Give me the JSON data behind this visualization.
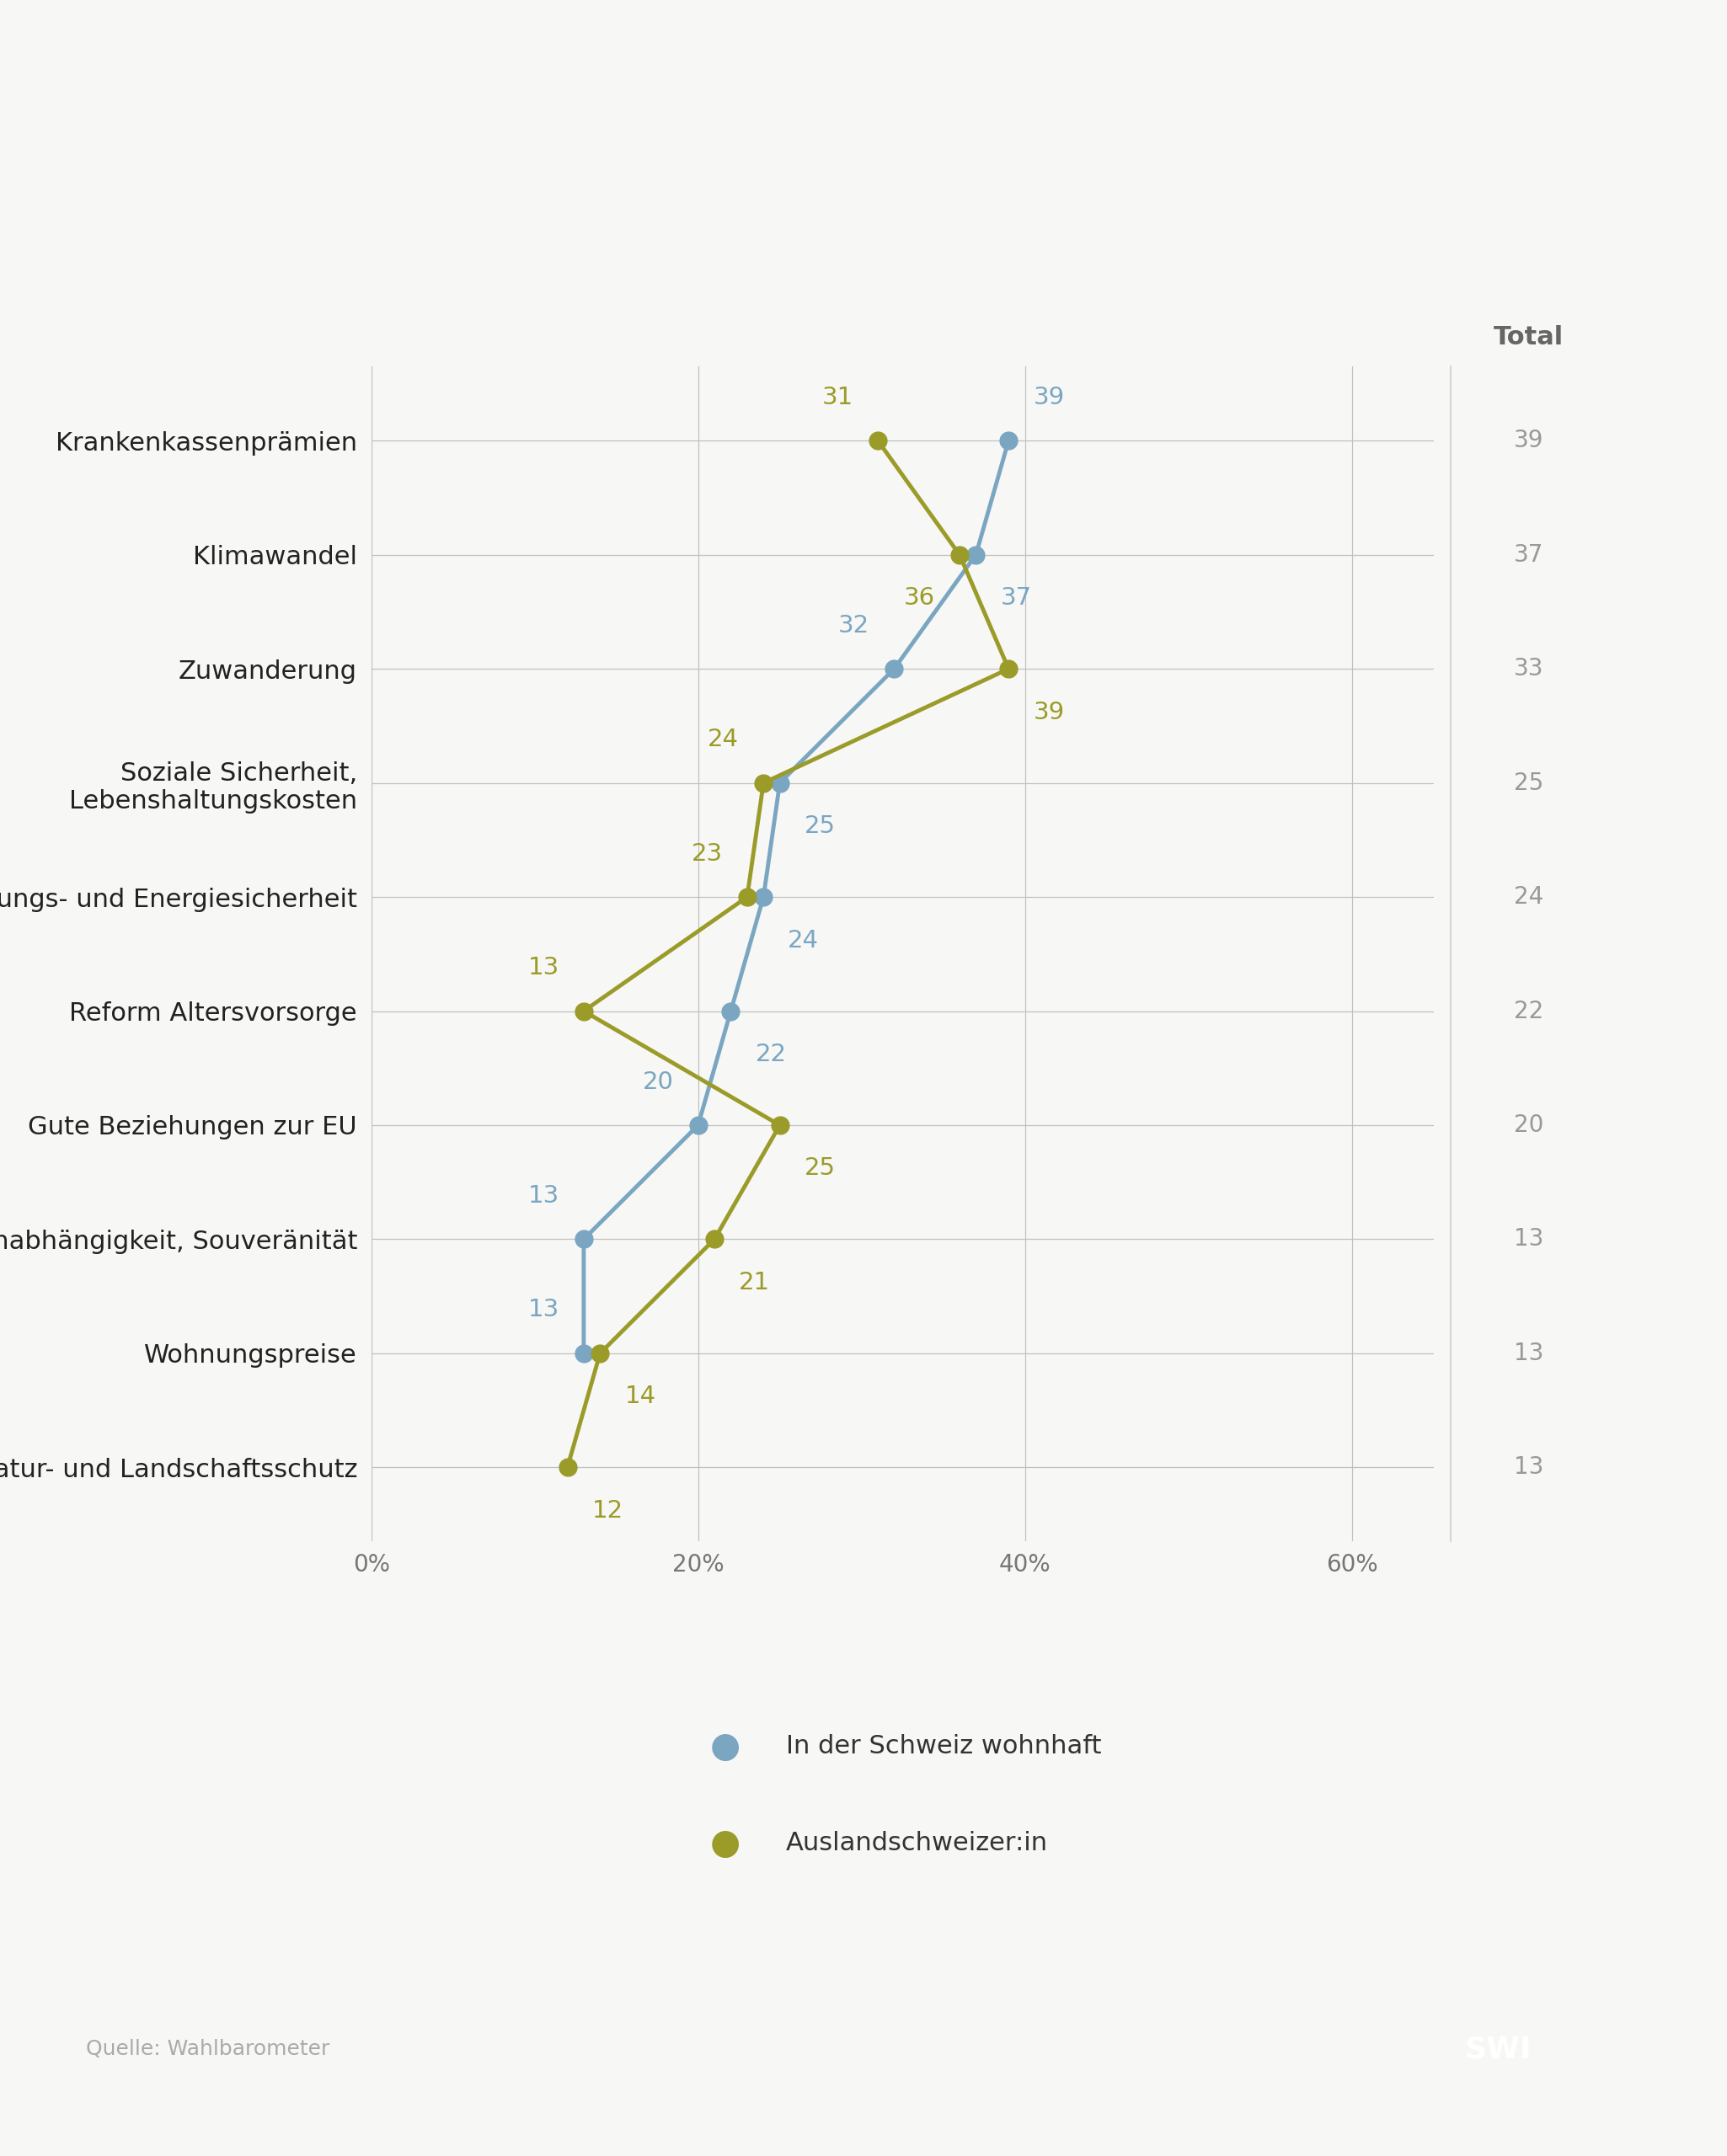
{
  "categories": [
    "Krankenkassenprämien",
    "Klimawandel",
    "Zuwanderung",
    "Soziale Sicherheit,\nLebenshaltungskosten",
    "Versorgungs- und Energiesicherheit",
    "Reform Altersvorsorge",
    "Gute Beziehungen zur EU",
    "Unabhängigkeit, Souveränität",
    "Wohnungspreise",
    "Natur- und Landschaftsschutz"
  ],
  "inland_values": [
    39,
    37,
    32,
    25,
    24,
    22,
    20,
    13,
    13,
    null
  ],
  "ausland_values": [
    31,
    36,
    39,
    24,
    23,
    13,
    25,
    21,
    14,
    12
  ],
  "total_values": [
    39,
    37,
    33,
    25,
    24,
    22,
    20,
    13,
    13,
    13
  ],
  "inland_color": "#7aa6c2",
  "ausland_color": "#9b9b2a",
  "background_color": "#f7f7f5",
  "line_width": 3.5,
  "marker_size": 15,
  "legend_inland": "In der Schweiz wohnhaft",
  "legend_ausland": "Auslandschweizer:in",
  "source_text": "Quelle: Wahlbarometer",
  "xlim_max": 65,
  "xticks": [
    0,
    20,
    40,
    60
  ],
  "xtick_labels": [
    "0%",
    "20%",
    "40%",
    "60%"
  ],
  "total_label": "Total",
  "label_fontsize": 22,
  "tick_fontsize": 20,
  "annotation_fontsize": 21,
  "total_fontsize": 20,
  "total_header_fontsize": 22,
  "source_fontsize": 18,
  "legend_fontsize": 22,
  "swi_fontsize": 26
}
